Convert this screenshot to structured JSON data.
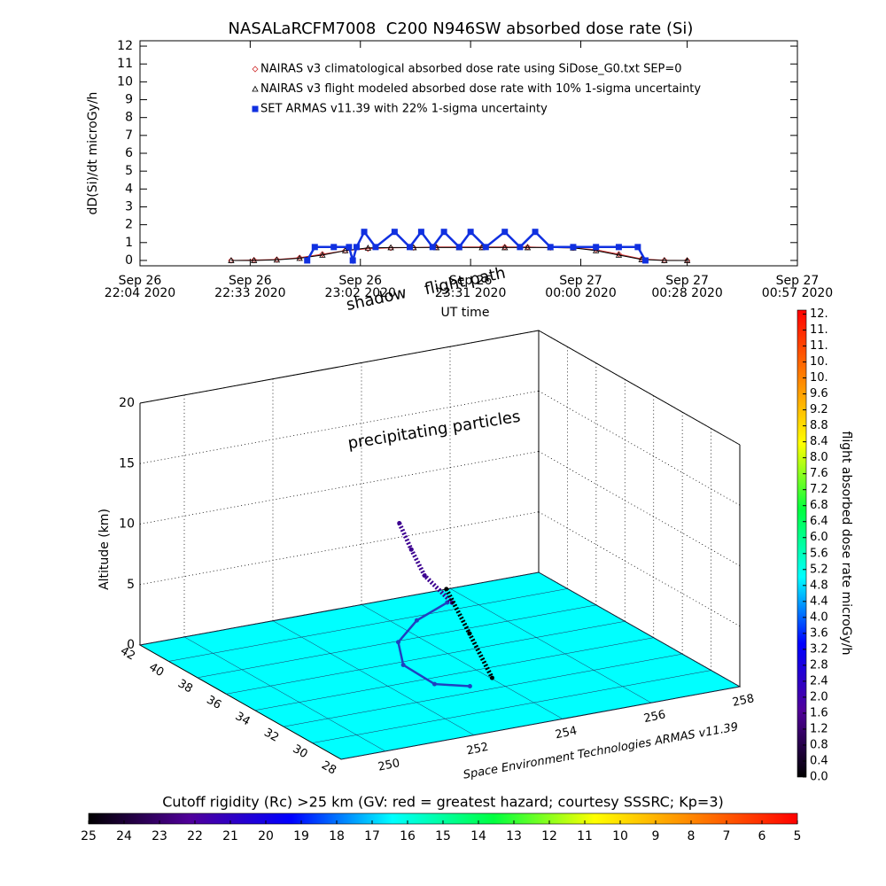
{
  "chart_data": [
    {
      "type": "line",
      "title": "NASALaRCFM7008  C200 N946SW absorbed dose rate (Si)",
      "ylabel": "dD(Si)/dt microGy/h",
      "xlabel": "UT time",
      "xlim": [
        "2020-09-26T22:04",
        "2020-09-27T00:57"
      ],
      "xticks": [
        {
          "value": "2020-09-26T22:04",
          "label": [
            "Sep 26",
            "22:04 2020"
          ]
        },
        {
          "value": "2020-09-26T22:33",
          "label": [
            "Sep 26",
            "22:33 2020"
          ]
        },
        {
          "value": "2020-09-26T23:02",
          "label": [
            "Sep 26",
            "23:02 2020"
          ]
        },
        {
          "value": "2020-09-26T23:31",
          "label": [
            "Sep 26",
            "23:31 2020"
          ]
        },
        {
          "value": "2020-09-27T00:00",
          "label": [
            "Sep 27",
            "00:00 2020"
          ]
        },
        {
          "value": "2020-09-27T00:28",
          "label": [
            "Sep 27",
            "00:28 2020"
          ]
        },
        {
          "value": "2020-09-27T00:57",
          "label": [
            "Sep 27",
            "00:57 2020"
          ]
        }
      ],
      "ylim": [
        -0.3,
        12.3
      ],
      "yticks": [
        0,
        1,
        2,
        3,
        4,
        5,
        6,
        7,
        8,
        9,
        10,
        11,
        12
      ],
      "series": [
        {
          "name": "NAIRAS v3 climatological absorbed dose rate using SiDose_G0.txt SEP=0",
          "color": "#d03030",
          "marker": "diamond",
          "x": [
            "2020-09-26T22:28",
            "2020-09-26T22:34",
            "2020-09-26T22:40",
            "2020-09-26T22:46",
            "2020-09-26T22:52",
            "2020-09-26T22:58",
            "2020-09-26T23:04",
            "2020-09-26T23:10",
            "2020-09-26T23:16",
            "2020-09-26T23:22",
            "2020-09-26T23:28",
            "2020-09-26T23:34",
            "2020-09-26T23:40",
            "2020-09-26T23:46",
            "2020-09-26T23:52",
            "2020-09-26T23:58",
            "2020-09-27T00:04",
            "2020-09-27T00:10",
            "2020-09-27T00:16",
            "2020-09-27T00:22",
            "2020-09-27T00:28"
          ],
          "values": [
            0,
            0.02,
            0.05,
            0.15,
            0.35,
            0.55,
            0.65,
            0.7,
            0.72,
            0.75,
            0.75,
            0.75,
            0.75,
            0.75,
            0.72,
            0.7,
            0.6,
            0.35,
            0.08,
            0.01,
            0
          ]
        },
        {
          "name": "NAIRAS v3 flight modeled absorbed dose rate with 10% 1-sigma uncertainty",
          "color": "#000000",
          "marker": "triangle",
          "x": [
            "2020-09-26T22:28",
            "2020-09-26T22:34",
            "2020-09-26T22:40",
            "2020-09-26T22:46",
            "2020-09-26T22:52",
            "2020-09-26T22:58",
            "2020-09-26T23:04",
            "2020-09-26T23:10",
            "2020-09-26T23:16",
            "2020-09-26T23:22",
            "2020-09-26T23:28",
            "2020-09-26T23:34",
            "2020-09-26T23:40",
            "2020-09-26T23:46",
            "2020-09-26T23:52",
            "2020-09-26T23:58",
            "2020-09-27T00:04",
            "2020-09-27T00:10",
            "2020-09-27T00:16",
            "2020-09-27T00:22",
            "2020-09-27T00:28"
          ],
          "values": [
            0,
            0,
            0.03,
            0.12,
            0.3,
            0.55,
            0.7,
            0.72,
            0.72,
            0.72,
            0.72,
            0.72,
            0.72,
            0.72,
            0.72,
            0.7,
            0.55,
            0.3,
            0.05,
            0,
            0
          ]
        },
        {
          "name": "SET ARMAS v11.39 with 22% 1-sigma uncertainty",
          "color": "#1030e0",
          "marker": "square",
          "x": [
            "2020-09-26T22:48",
            "2020-09-26T22:50",
            "2020-09-26T22:55",
            "2020-09-26T22:59",
            "2020-09-26T23:00",
            "2020-09-26T23:01",
            "2020-09-26T23:03",
            "2020-09-26T23:06",
            "2020-09-26T23:11",
            "2020-09-26T23:15",
            "2020-09-26T23:18",
            "2020-09-26T23:21",
            "2020-09-26T23:24",
            "2020-09-26T23:28",
            "2020-09-26T23:31",
            "2020-09-26T23:35",
            "2020-09-26T23:40",
            "2020-09-26T23:44",
            "2020-09-26T23:48",
            "2020-09-26T23:52",
            "2020-09-26T23:58",
            "2020-09-27T00:04",
            "2020-09-27T00:10",
            "2020-09-27T00:15",
            "2020-09-27T00:17"
          ],
          "values": [
            0,
            0.75,
            0.75,
            0.75,
            0,
            0.75,
            1.6,
            0.75,
            1.6,
            0.75,
            1.6,
            0.75,
            1.6,
            0.75,
            1.6,
            0.75,
            1.6,
            0.75,
            1.6,
            0.75,
            0.75,
            0.75,
            0.75,
            0.75,
            0
          ]
        }
      ]
    },
    {
      "type": "3d",
      "zlabel": "Altitude (km)",
      "zlim": [
        0,
        20
      ],
      "zticks": [
        0,
        5,
        10,
        15,
        20
      ],
      "latlim": [
        28,
        42
      ],
      "latticks": [
        42,
        40,
        38,
        36,
        34,
        32,
        30,
        28
      ],
      "lonlim": [
        249,
        258
      ],
      "lonticks": [
        250,
        252,
        254,
        256,
        258
      ],
      "floor_color": "#00ffff",
      "annotations": [
        "precipitating particles",
        "flight path",
        "shadow"
      ],
      "credit": "Space Environment Technologies ARMAS v11.39",
      "flight_path": {
        "color": "#3c0090",
        "lat": [
          37.7,
          37.3,
          36.9,
          35.6
        ],
        "lon": [
          253.46,
          253.6,
          253.77,
          253.97
        ],
        "alt": [
          10,
          8,
          6,
          4.5
        ]
      },
      "descent": {
        "color": "#000000",
        "lat": [
          36.4,
          34.7,
          33.0
        ],
        "lon": [
          254.1,
          254.07,
          254.03
        ],
        "alt": [
          5,
          2.5,
          0
        ]
      },
      "shadow": {
        "color": "#2040c0",
        "lat": [
          40.75,
          39.6,
          37.9,
          35.7,
          33.4,
          32.6
        ],
        "lon": [
          255.53,
          254.47,
          253.5,
          252.9,
          252.86,
          253.4
        ],
        "alt": [
          0,
          0,
          0,
          0,
          0,
          0
        ]
      },
      "colorbar": {
        "label": "flight absorbed dose rate microGy/h",
        "ylim": [
          0,
          11.7
        ],
        "yticks": [
          {
            "value": 0,
            "label": "0.0"
          },
          0.4,
          0.8,
          1.2,
          1.6,
          {
            "value": 2,
            "label": "2.0"
          },
          2.4,
          2.8,
          3.2,
          3.6,
          {
            "value": 4,
            "label": "4.0"
          },
          4.4,
          4.8,
          5.2,
          5.6,
          {
            "value": 6,
            "label": "6.0"
          },
          6.4,
          6.8,
          7.2,
          7.6,
          {
            "value": 8,
            "label": "8.0"
          },
          8.4,
          8.8,
          9.2,
          9.6,
          {
            "value": 10,
            "label": "10."
          },
          {
            "value": 10.4,
            "label": "10."
          },
          {
            "value": 10.8,
            "label": "11."
          },
          {
            "value": 11.2,
            "label": "11."
          },
          {
            "value": 11.6,
            "label": "12."
          }
        ],
        "colormap": [
          "#000000",
          "#50009a",
          "#0000ff",
          "#00ffff",
          "#00ff40",
          "#ffff00",
          "#ff8000",
          "#ff0000"
        ]
      }
    },
    {
      "type": "colorbar",
      "title": "Cutoff rigidity (Rc) >25 km (GV: red = greatest hazard; courtesy SSSRC; Kp=3)",
      "xlim": [
        25,
        5
      ],
      "xticks": [
        25,
        24,
        23,
        22,
        21,
        20,
        19,
        18,
        17,
        16,
        15,
        14,
        13,
        12,
        11,
        10,
        9,
        8,
        7,
        6,
        5
      ],
      "colormap": [
        "#000000",
        "#50009a",
        "#0000ff",
        "#00ffff",
        "#00ff40",
        "#ffff00",
        "#ff8000",
        "#ff0000"
      ]
    }
  ]
}
